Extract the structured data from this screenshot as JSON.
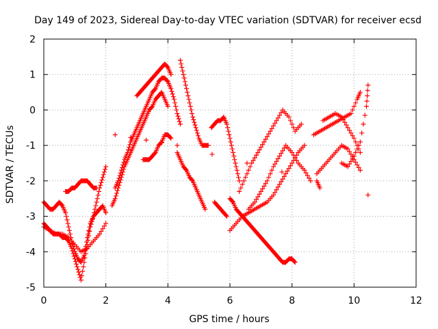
{
  "chart_data": {
    "type": "scatter",
    "title": "Day 149 of 2023, Sidereal Day-to-day VTEC variation (SDTVAR) for receiver ecsd",
    "xlabel": "GPS time / hours",
    "ylabel": "SDTVAR / TECUs",
    "xlim": [
      0,
      12
    ],
    "ylim": [
      -5,
      2
    ],
    "xticks": [
      0,
      2,
      4,
      6,
      8,
      10,
      12
    ],
    "yticks": [
      -5,
      -4,
      -3,
      -2,
      -1,
      0,
      1,
      2
    ],
    "grid": true,
    "marker": "plus",
    "color": "#ff0000",
    "series": [
      {
        "x": [
          0.0,
          0.1,
          0.2,
          0.3,
          0.4,
          0.5,
          0.6,
          0.7,
          0.8,
          0.9,
          1.0,
          1.1,
          1.2,
          1.3,
          1.4,
          1.5,
          1.6,
          1.7,
          1.8,
          1.9,
          2.0
        ],
        "y": [
          -3.2,
          -3.3,
          -3.4,
          -3.5,
          -3.5,
          -3.5,
          -3.6,
          -3.6,
          -3.7,
          -3.9,
          -4.2,
          -4.5,
          -4.8,
          -4.3,
          -3.8,
          -3.3,
          -3.0,
          -2.6,
          -2.2,
          -1.9,
          -1.6
        ]
      },
      {
        "x": [
          0.0,
          0.1,
          0.2,
          0.3,
          0.4,
          0.5,
          0.6,
          0.7,
          0.8,
          0.9,
          1.0,
          1.1,
          1.2,
          1.3,
          1.4,
          1.5,
          1.6,
          1.7,
          1.8,
          1.9,
          2.0
        ],
        "y": [
          -2.6,
          -2.7,
          -2.8,
          -2.8,
          -2.7,
          -2.6,
          -2.7,
          -2.9,
          -3.3,
          -3.7,
          -4.0,
          -4.2,
          -4.3,
          -4.1,
          -3.6,
          -3.2,
          -3.0,
          -2.9,
          -2.8,
          -2.7,
          -2.9
        ]
      },
      {
        "x": [
          0.0,
          0.2,
          0.4,
          0.6,
          0.8,
          1.0,
          1.2,
          1.4,
          1.6,
          1.8,
          2.0
        ],
        "y": [
          -3.3,
          -3.4,
          -3.5,
          -3.5,
          -3.6,
          -3.8,
          -4.0,
          -3.9,
          -3.7,
          -3.5,
          -3.2
        ]
      },
      {
        "x": [
          0.7,
          0.8,
          0.9,
          1.0,
          1.1,
          1.2,
          1.3,
          1.4,
          1.5,
          1.6,
          1.7
        ],
        "y": [
          -2.3,
          -2.3,
          -2.2,
          -2.2,
          -2.1,
          -2.0,
          -2.0,
          -2.0,
          -2.1,
          -2.2,
          -2.2
        ]
      },
      {
        "x": [
          2.3,
          2.4,
          2.5,
          2.6,
          2.7,
          2.8,
          2.9,
          3.0,
          3.1,
          3.2,
          3.3,
          3.4,
          3.5,
          3.6,
          3.7,
          3.8,
          3.9,
          4.0,
          4.1,
          4.2,
          4.3,
          4.4
        ],
        "y": [
          -2.2,
          -2.0,
          -1.7,
          -1.4,
          -1.2,
          -0.9,
          -0.7,
          -0.5,
          -0.3,
          -0.1,
          0.1,
          0.3,
          0.5,
          0.6,
          0.8,
          0.9,
          0.9,
          0.8,
          0.6,
          0.3,
          -0.1,
          -0.4
        ]
      },
      {
        "x": [
          2.2,
          2.3,
          2.4,
          2.5,
          2.6,
          2.7,
          2.8,
          2.9,
          3.0,
          3.1,
          3.2,
          3.3,
          3.4,
          3.5,
          3.6,
          3.7,
          3.8,
          3.9,
          4.0
        ],
        "y": [
          -2.7,
          -2.5,
          -2.2,
          -1.9,
          -1.6,
          -1.4,
          -1.2,
          -1.0,
          -0.8,
          -0.6,
          -0.4,
          -0.2,
          0.0,
          0.1,
          0.3,
          0.4,
          0.5,
          0.3,
          0.1
        ]
      },
      {
        "x": [
          3.0,
          3.1,
          3.2,
          3.3,
          3.4,
          3.5,
          3.6,
          3.7,
          3.8,
          3.9,
          4.0,
          4.1
        ],
        "y": [
          0.4,
          0.5,
          0.6,
          0.7,
          0.8,
          0.9,
          1.0,
          1.1,
          1.2,
          1.3,
          1.2,
          1.0
        ]
      },
      {
        "x": [
          3.2,
          3.3,
          3.4,
          3.5,
          3.6,
          3.7,
          3.8,
          3.9,
          4.0,
          4.1
        ],
        "y": [
          -1.4,
          -1.4,
          -1.4,
          -1.3,
          -1.2,
          -1.0,
          -0.9,
          -0.7,
          -0.7,
          -0.8
        ]
      },
      {
        "x": [
          4.4,
          4.5,
          4.6,
          4.7,
          4.8,
          4.9,
          5.0,
          5.1,
          5.2,
          5.3
        ],
        "y": [
          1.4,
          1.0,
          0.6,
          0.2,
          -0.2,
          -0.5,
          -0.8,
          -1.0,
          -1.0,
          -1.0
        ]
      },
      {
        "x": [
          4.3,
          4.4,
          4.5,
          4.6,
          4.7,
          4.8,
          4.9,
          5.0,
          5.1,
          5.2
        ],
        "y": [
          -1.2,
          -1.4,
          -1.6,
          -1.7,
          -1.9,
          -2.0,
          -2.2,
          -2.4,
          -2.6,
          -2.8
        ]
      },
      {
        "x": [
          5.4,
          5.5,
          5.6,
          5.7,
          5.8,
          5.9,
          6.0,
          6.1,
          6.2,
          6.3
        ],
        "y": [
          -0.5,
          -0.4,
          -0.3,
          -0.3,
          -0.2,
          -0.4,
          -0.8,
          -1.2,
          -1.6,
          -2.0
        ]
      },
      {
        "x": [
          5.5,
          5.6,
          5.7,
          5.8,
          5.9
        ],
        "y": [
          -2.6,
          -2.7,
          -2.8,
          -2.9,
          -3.0
        ]
      },
      {
        "x": [
          6.0,
          6.1,
          6.2,
          6.3,
          6.4,
          6.5,
          6.6,
          6.7,
          6.8,
          6.9,
          7.0,
          7.1,
          7.2,
          7.3,
          7.4,
          7.5,
          7.6,
          7.7,
          7.8,
          7.9,
          8.0,
          8.1
        ],
        "y": [
          -2.5,
          -2.6,
          -2.8,
          -2.9,
          -3.0,
          -3.1,
          -3.2,
          -3.3,
          -3.4,
          -3.5,
          -3.6,
          -3.7,
          -3.8,
          -3.9,
          -4.0,
          -4.1,
          -4.2,
          -4.3,
          -4.3,
          -4.2,
          -4.2,
          -4.3
        ]
      },
      {
        "x": [
          6.0,
          6.2,
          6.4,
          6.6,
          6.8,
          7.0,
          7.2,
          7.4,
          7.6,
          7.8,
          8.0,
          8.2,
          8.4
        ],
        "y": [
          -3.4,
          -3.2,
          -3.0,
          -2.9,
          -2.8,
          -2.7,
          -2.6,
          -2.4,
          -2.1,
          -1.8,
          -1.5,
          -1.2,
          -1.0
        ]
      },
      {
        "x": [
          6.3,
          6.5,
          6.7,
          6.9,
          7.1,
          7.3,
          7.5,
          7.7,
          7.9,
          8.1,
          8.3
        ],
        "y": [
          -2.3,
          -1.9,
          -1.5,
          -1.2,
          -0.9,
          -0.6,
          -0.3,
          0.0,
          -0.2,
          -0.6,
          -0.4
        ]
      },
      {
        "x": [
          6.6,
          6.8,
          7.0,
          7.2,
          7.4,
          7.6,
          7.8,
          8.0,
          8.2,
          8.4,
          8.6
        ],
        "y": [
          -2.8,
          -2.6,
          -2.3,
          -2.0,
          -1.6,
          -1.3,
          -1.0,
          -1.2,
          -1.5,
          -1.7,
          -2.0
        ]
      },
      {
        "x": [
          8.7,
          8.9,
          9.1,
          9.3,
          9.5,
          9.7,
          9.9,
          10.1,
          10.2
        ],
        "y": [
          -0.7,
          -0.6,
          -0.5,
          -0.4,
          -0.3,
          -0.2,
          -0.1,
          0.3,
          0.5
        ]
      },
      {
        "x": [
          8.8,
          9.0,
          9.2,
          9.4,
          9.6,
          9.8,
          10.0,
          10.2
        ],
        "y": [
          -1.8,
          -1.6,
          -1.4,
          -1.2,
          -1.0,
          -1.1,
          -1.4,
          -1.7
        ]
      },
      {
        "x": [
          9.0,
          9.2,
          9.4,
          9.6,
          9.8,
          10.0,
          10.2
        ],
        "y": [
          -0.3,
          -0.2,
          -0.1,
          -0.2,
          -0.5,
          -0.8,
          -1.2
        ]
      },
      {
        "x": [
          9.6,
          9.8,
          10.0,
          10.2,
          10.4,
          10.45
        ],
        "y": [
          -1.5,
          -1.6,
          -1.3,
          -0.9,
          0.1,
          0.7
        ]
      },
      {
        "x": [
          10.45
        ],
        "y": [
          -2.4
        ]
      },
      {
        "x": [
          2.3,
          4.3,
          8.8,
          8.9
        ],
        "y": [
          -0.7,
          -1.0,
          -2.0,
          -2.2
        ]
      }
    ]
  }
}
